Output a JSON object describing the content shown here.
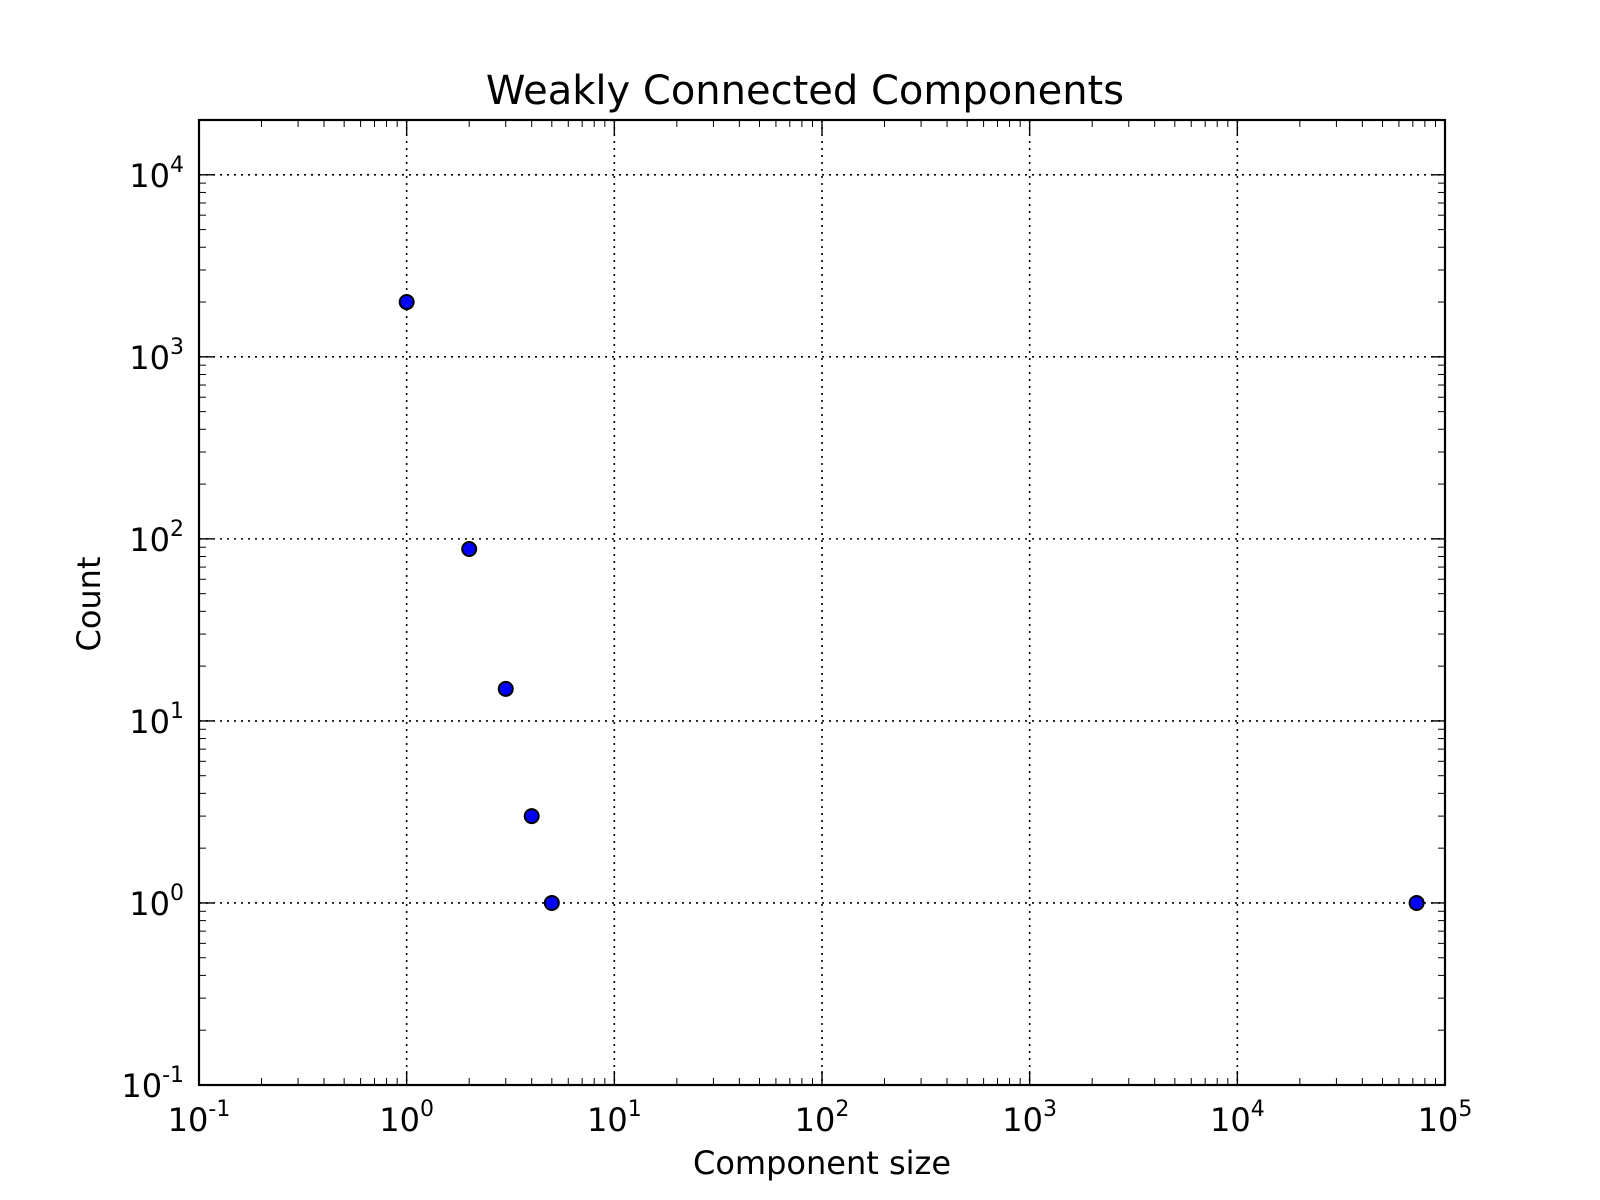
{
  "chart_data": {
    "type": "scatter",
    "title": "Weakly Connected Components",
    "xlabel": "Component size",
    "ylabel": "Count",
    "xscale": "log",
    "yscale": "log",
    "xlim": [
      0.1,
      100000
    ],
    "ylim": [
      0.1,
      20000
    ],
    "x_ticks": [
      {
        "base": "10",
        "exp": "-1",
        "value": 0.1
      },
      {
        "base": "10",
        "exp": "0",
        "value": 1
      },
      {
        "base": "10",
        "exp": "1",
        "value": 10
      },
      {
        "base": "10",
        "exp": "2",
        "value": 100
      },
      {
        "base": "10",
        "exp": "3",
        "value": 1000
      },
      {
        "base": "10",
        "exp": "4",
        "value": 10000
      },
      {
        "base": "10",
        "exp": "5",
        "value": 100000
      }
    ],
    "y_ticks": [
      {
        "base": "10",
        "exp": "-1",
        "value": 0.1
      },
      {
        "base": "10",
        "exp": "0",
        "value": 1
      },
      {
        "base": "10",
        "exp": "1",
        "value": 10
      },
      {
        "base": "10",
        "exp": "2",
        "value": 100
      },
      {
        "base": "10",
        "exp": "3",
        "value": 1000
      },
      {
        "base": "10",
        "exp": "4",
        "value": 10000
      }
    ],
    "grid": true,
    "marker_color": "#0000ff",
    "marker_edge": "#000000",
    "points": [
      {
        "x": 1,
        "y": 2000
      },
      {
        "x": 2,
        "y": 88
      },
      {
        "x": 3,
        "y": 15
      },
      {
        "x": 4,
        "y": 3
      },
      {
        "x": 5,
        "y": 1
      },
      {
        "x": 73000,
        "y": 1
      }
    ]
  }
}
